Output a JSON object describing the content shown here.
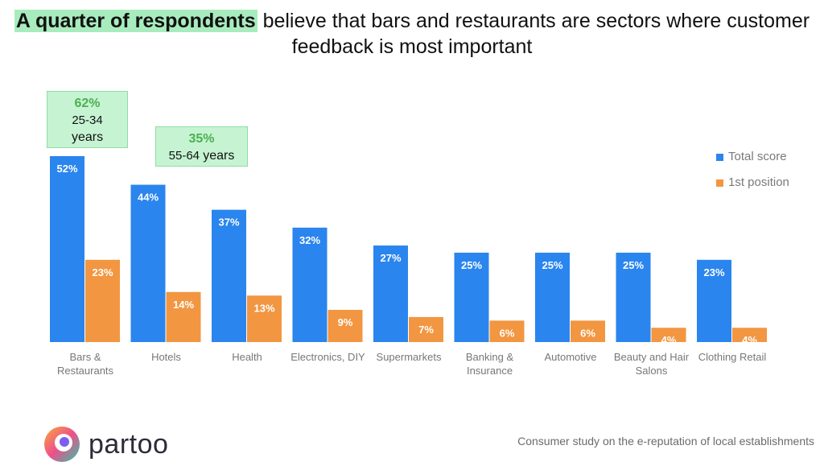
{
  "title": {
    "highlight": "A quarter of respondents",
    "rest": " believe that bars and restaurants are sectors where customer feedback is most important"
  },
  "colors": {
    "total": "#2a85ee",
    "first": "#f29641",
    "highlight": "#a8ecbe",
    "callout_text": "#4caf50"
  },
  "chart_data": {
    "type": "bar",
    "categories": [
      "Bars & Restaurants",
      "Hotels",
      "Health",
      "Electronics, DIY",
      "Supermarkets",
      "Banking & Insurance",
      "Automotive",
      "Beauty and Hair Salons",
      "Clothing Retail"
    ],
    "category_lines": [
      [
        "Bars &",
        "Restaurants"
      ],
      [
        "Hotels"
      ],
      [
        "Health"
      ],
      [
        "Electronics, DIY"
      ],
      [
        "Supermarkets"
      ],
      [
        "Banking &",
        "Insurance"
      ],
      [
        "Automotive"
      ],
      [
        "Beauty and Hair",
        "Salons"
      ],
      [
        "Clothing Retail"
      ]
    ],
    "series": [
      {
        "name": "Total score",
        "values": [
          52,
          44,
          37,
          32,
          27,
          25,
          25,
          25,
          23
        ],
        "labels": [
          "52%",
          "44%",
          "37%",
          "32%",
          "27%",
          "25%",
          "25%",
          "25%",
          "23%"
        ]
      },
      {
        "name": "1st position",
        "values": [
          23,
          14,
          13,
          9,
          7,
          6,
          6,
          4,
          4
        ],
        "labels": [
          "23%",
          "14%",
          "13%",
          "9%",
          "7%",
          "6%",
          "6%",
          "4%",
          "4%"
        ]
      }
    ],
    "ylim": [
      0,
      52
    ],
    "grid": false,
    "legend_position": "right",
    "annotations": [
      {
        "category": "Bars & Restaurants",
        "value": "62%",
        "line1": "25-34",
        "line2": "years"
      },
      {
        "category": "Hotels",
        "value": "35%",
        "line1": "55-64",
        "line2": "years"
      }
    ]
  },
  "legend": {
    "total": "Total score",
    "first": "1st position"
  },
  "brand": {
    "name": "partoo"
  },
  "footer": "Consumer study on the e-reputation of local establishments"
}
